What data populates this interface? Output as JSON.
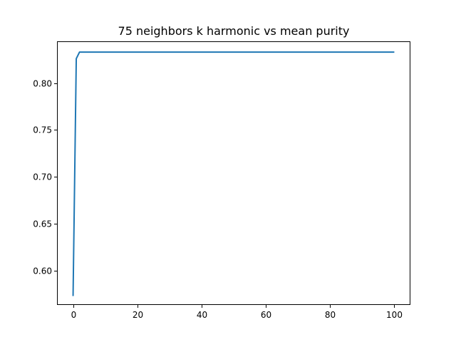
{
  "chart_data": {
    "type": "line",
    "title": "75 neighbors k harmonic vs mean purity",
    "xlabel": "",
    "ylabel": "",
    "xlim": [
      -5,
      105
    ],
    "ylim": [
      0.5635,
      0.8445
    ],
    "xticks": [
      0,
      20,
      40,
      60,
      80,
      100
    ],
    "xtick_labels": [
      "0",
      "20",
      "40",
      "60",
      "80",
      "100"
    ],
    "yticks": [
      0.6,
      0.65,
      0.7,
      0.75,
      0.8
    ],
    "ytick_labels": [
      "0.60",
      "0.65",
      "0.70",
      "0.75",
      "0.80"
    ],
    "grid": false,
    "legend": "none",
    "series": [
      {
        "color": "#1f77b4",
        "x": [
          0,
          1,
          2,
          3,
          4,
          5,
          10,
          20,
          30,
          40,
          50,
          60,
          70,
          80,
          90,
          100
        ],
        "y": [
          0.573,
          0.826,
          0.833,
          0.833,
          0.833,
          0.833,
          0.833,
          0.833,
          0.833,
          0.833,
          0.833,
          0.833,
          0.833,
          0.833,
          0.833,
          0.833
        ]
      }
    ]
  }
}
